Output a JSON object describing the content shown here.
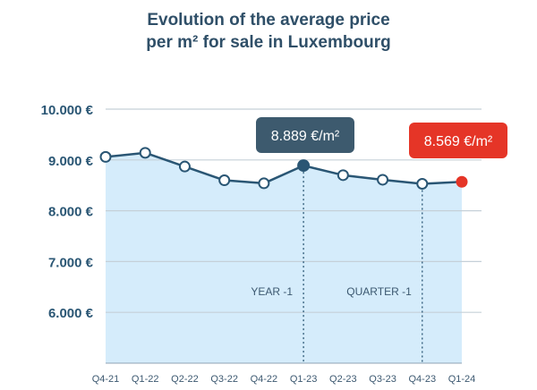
{
  "chart_data": {
    "type": "area",
    "title_line1": "Evolution of the average price",
    "title_line2": "per m² for sale in Luxembourg",
    "categories": [
      "Q4-21",
      "Q1-22",
      "Q2-22",
      "Q3-22",
      "Q4-22",
      "Q1-23",
      "Q2-23",
      "Q3-23",
      "Q4-23",
      "Q1-24"
    ],
    "values": [
      9060,
      9140,
      8870,
      8600,
      8540,
      8889,
      8700,
      8610,
      8530,
      8569
    ],
    "ylim": [
      5000,
      10000
    ],
    "y_ticks": [
      {
        "value": 6000,
        "label": "6.000 €"
      },
      {
        "value": 7000,
        "label": "7.000 €"
      },
      {
        "value": 8000,
        "label": "8.000 €"
      },
      {
        "value": 9000,
        "label": "9.000 €"
      },
      {
        "value": 10000,
        "label": "10.000 €"
      }
    ],
    "grid": true,
    "colors": {
      "line": "#2a5674",
      "fill": "#d5ecfb",
      "grid": "#c5d0d8",
      "highlight": "#2a5674",
      "current": "#e53527",
      "title": "#2f4f68",
      "tick": "#3c5870"
    },
    "highlight_index": 5,
    "current_index": 9,
    "callouts": [
      {
        "text": "8.889 €/m²",
        "index": 5,
        "color": "#3d5a6e"
      },
      {
        "text": "8.569 €/m²",
        "index": 9,
        "color": "#e53527"
      }
    ],
    "markers": [
      {
        "label": "YEAR -1",
        "index": 5
      },
      {
        "label": "QUARTER -1",
        "index": 8
      }
    ]
  }
}
